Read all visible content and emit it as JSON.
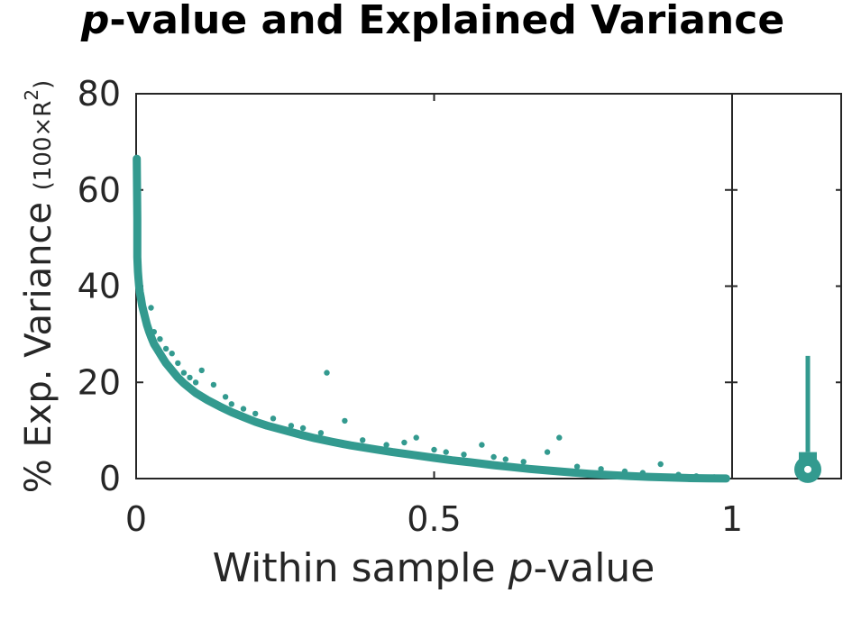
{
  "chart_data": {
    "type": "scatter",
    "title_prefix_italic": "p",
    "title_rest": "-value and Explained Variance",
    "xlabel_prefix": "Within sample ",
    "xlabel_italic": "p",
    "xlabel_suffix": "-value",
    "ylabel_main": "% Exp. Variance ",
    "ylabel_sub_open": "(100×R",
    "ylabel_sup": "2",
    "ylabel_sub_close": ")",
    "xlim": [
      0,
      1
    ],
    "ylim": [
      0,
      80
    ],
    "x_ticks": [
      "0",
      "0.5",
      "1"
    ],
    "y_ticks": [
      "0",
      "20",
      "40",
      "60",
      "80"
    ],
    "marker_color": "#339a8f",
    "grid": false,
    "series": [
      {
        "points": [
          [
            0.001,
            66.5
          ],
          [
            0.002,
            54.0
          ],
          [
            0.002,
            53.5
          ],
          [
            0.002,
            46.0
          ],
          [
            0.003,
            43.0
          ],
          [
            0.004,
            41.5
          ],
          [
            0.005,
            40.0
          ],
          [
            0.006,
            38.8
          ],
          [
            0.008,
            37.5
          ],
          [
            0.01,
            36.0
          ],
          [
            0.012,
            35.0
          ],
          [
            0.015,
            33.5
          ],
          [
            0.018,
            32.0
          ],
          [
            0.022,
            30.5
          ],
          [
            0.025,
            29.5
          ],
          [
            0.03,
            28.0
          ],
          [
            0.035,
            27.0
          ],
          [
            0.04,
            26.0
          ],
          [
            0.045,
            25.0
          ],
          [
            0.05,
            24.0
          ],
          [
            0.06,
            22.5
          ],
          [
            0.07,
            21.0
          ],
          [
            0.08,
            19.8
          ],
          [
            0.09,
            18.8
          ],
          [
            0.1,
            17.8
          ],
          [
            0.12,
            16.3
          ],
          [
            0.14,
            15.0
          ],
          [
            0.16,
            13.8
          ],
          [
            0.18,
            12.8
          ],
          [
            0.2,
            11.8
          ],
          [
            0.22,
            11.0
          ],
          [
            0.25,
            10.0
          ],
          [
            0.28,
            9.0
          ],
          [
            0.3,
            8.4
          ],
          [
            0.33,
            7.6
          ],
          [
            0.36,
            6.9
          ],
          [
            0.4,
            6.1
          ],
          [
            0.43,
            5.5
          ],
          [
            0.46,
            5.0
          ],
          [
            0.5,
            4.3
          ],
          [
            0.53,
            3.8
          ],
          [
            0.56,
            3.4
          ],
          [
            0.6,
            2.8
          ],
          [
            0.63,
            2.4
          ],
          [
            0.66,
            2.0
          ],
          [
            0.7,
            1.6
          ],
          [
            0.73,
            1.3
          ],
          [
            0.76,
            1.0
          ],
          [
            0.8,
            0.7
          ],
          [
            0.83,
            0.5
          ],
          [
            0.86,
            0.35
          ],
          [
            0.9,
            0.2
          ],
          [
            0.93,
            0.1
          ],
          [
            0.96,
            0.05
          ],
          [
            0.99,
            0.01
          ],
          [
            0.025,
            35.5
          ],
          [
            0.03,
            30.5
          ],
          [
            0.04,
            29.0
          ],
          [
            0.05,
            27.0
          ],
          [
            0.06,
            26.0
          ],
          [
            0.07,
            24.0
          ],
          [
            0.08,
            22.0
          ],
          [
            0.09,
            21.0
          ],
          [
            0.1,
            20.0
          ],
          [
            0.11,
            22.5
          ],
          [
            0.13,
            19.5
          ],
          [
            0.15,
            17.0
          ],
          [
            0.16,
            15.5
          ],
          [
            0.18,
            14.5
          ],
          [
            0.2,
            13.5
          ],
          [
            0.23,
            12.5
          ],
          [
            0.26,
            11.0
          ],
          [
            0.28,
            10.5
          ],
          [
            0.31,
            9.5
          ],
          [
            0.32,
            22.0
          ],
          [
            0.35,
            12.0
          ],
          [
            0.38,
            8.0
          ],
          [
            0.42,
            7.0
          ],
          [
            0.45,
            7.5
          ],
          [
            0.47,
            8.5
          ],
          [
            0.5,
            6.0
          ],
          [
            0.52,
            5.5
          ],
          [
            0.55,
            5.0
          ],
          [
            0.58,
            7.0
          ],
          [
            0.6,
            4.5
          ],
          [
            0.62,
            4.0
          ],
          [
            0.65,
            3.5
          ],
          [
            0.69,
            5.5
          ],
          [
            0.71,
            8.5
          ],
          [
            0.74,
            2.5
          ],
          [
            0.78,
            2.0
          ],
          [
            0.82,
            1.5
          ],
          [
            0.85,
            1.2
          ],
          [
            0.88,
            3.0
          ],
          [
            0.91,
            0.8
          ],
          [
            0.94,
            0.5
          ],
          [
            0.97,
            0.3
          ]
        ]
      }
    ],
    "side_panel": {
      "type": "box",
      "median": 1.9,
      "q1": 0.6,
      "q3": 5.5,
      "whisker_low": 0.0,
      "whisker_high": 25.5
    }
  }
}
